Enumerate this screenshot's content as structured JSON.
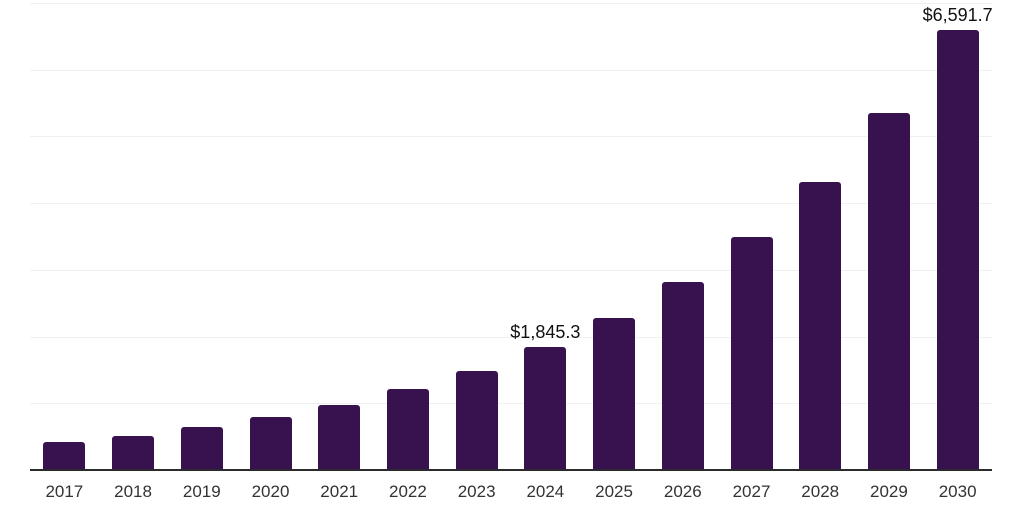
{
  "chart_data": {
    "type": "bar",
    "title": "",
    "xlabel": "",
    "ylabel": "",
    "categories": [
      "2017",
      "2018",
      "2019",
      "2020",
      "2021",
      "2022",
      "2023",
      "2024",
      "2025",
      "2026",
      "2027",
      "2028",
      "2029",
      "2030"
    ],
    "values": [
      420,
      515,
      640,
      790,
      980,
      1210,
      1490,
      1845.3,
      2280,
      2820,
      3490,
      4310,
      5350,
      6591.7
    ],
    "data_labels": [
      "",
      "",
      "",
      "",
      "",
      "",
      "",
      "$1,845.3",
      "",
      "",
      "",
      "",
      "",
      "$6,591.7"
    ],
    "ylim": [
      0,
      7000
    ],
    "gridline_step": 1000,
    "grid": "on",
    "legend": "none",
    "labeled_values_note": "Only 2024 and 2030 carry visible data labels; other values estimated from bar heights against gridlines",
    "colors": {
      "bar_fill": "#38114F",
      "axis_line": "#2b2b2b",
      "gridline": "#f0f0f0",
      "tick_label": "#333333",
      "data_label": "#111111",
      "background": "#ffffff"
    }
  }
}
